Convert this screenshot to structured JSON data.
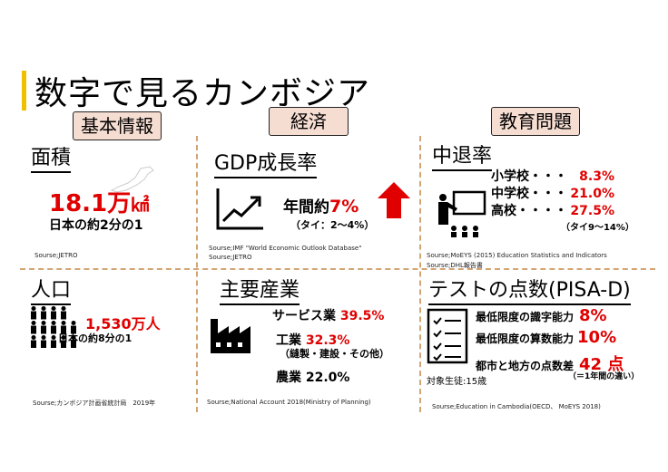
{
  "title": "数字で見るカンボジア",
  "categories": {
    "basic": "基本情報",
    "economy": "経済",
    "education": "教育問題"
  },
  "area": {
    "heading": "面積",
    "value": "18.1万",
    "unit": "㎢",
    "note": "日本の約2分の1",
    "source": "Sourse;JETRO"
  },
  "gdp": {
    "heading": "GDP成長率",
    "label": "年間約",
    "value": "7%",
    "note": "（タイ：2～4%）",
    "source1": "Sourse;IMF \"World Economic Outlook Database\"",
    "source2": "Sourse;JETRO"
  },
  "dropout": {
    "heading": "中退率",
    "rows": [
      {
        "label": "小学校・・・",
        "value": "8.3%"
      },
      {
        "label": "中学校・・・",
        "value": "21.0%"
      },
      {
        "label": "高校・・・・",
        "value": "27.5%"
      }
    ],
    "note": "（タイ9～14%）",
    "source1": "Sourse;MoEYS (2015) Education Statistics and Indicators",
    "source2": "Sourse;DHL報告書"
  },
  "population": {
    "heading": "人口",
    "value": "1,530万人",
    "note": "日本の約8分の1",
    "source": "Sourse;カンボジア計画省統計局　2019年"
  },
  "industry": {
    "heading": "主要産業",
    "services_label": "サービス業",
    "services_value": "39.5%",
    "manufacturing_label": "工業",
    "manufacturing_value": "32.3%",
    "manufacturing_note": "（縫製・建設・その他）",
    "agriculture_label": "農業",
    "agriculture_value": "22.0%",
    "source": "Sourse;National Account 2018(Ministry of Planning)"
  },
  "pisa": {
    "heading": "テストの点数(PISA-D)",
    "literacy_label": "最低限度の識字能力",
    "literacy_value": "8%",
    "math_label": "最低限度の算数能力",
    "math_value": "10%",
    "gap_label": "都市と地方の点数差",
    "gap_value": "42 点",
    "gap_note": "（＝1年間の違い）",
    "subjects": "対象生徒:15歳",
    "source": "Sourse;Education in Cambodia(OECD、 MoEYS 2018)"
  }
}
